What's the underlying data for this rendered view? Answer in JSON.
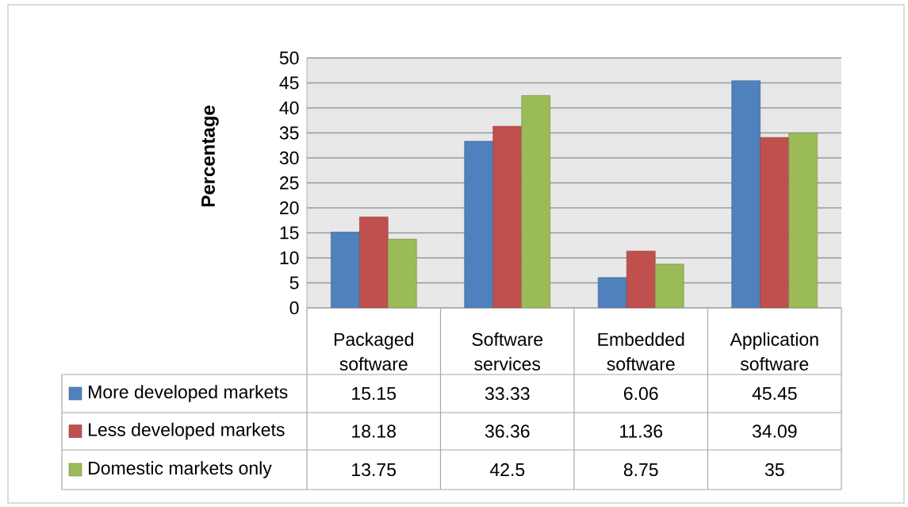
{
  "chart_data": {
    "type": "bar",
    "ylabel": "Percentage",
    "categories": [
      "Packaged software",
      "Software services",
      "Embedded software",
      "Application software"
    ],
    "series": [
      {
        "name": "More developed markets",
        "color": "#4f81bd",
        "values": [
          15.15,
          33.33,
          6.06,
          45.45
        ]
      },
      {
        "name": "Less developed markets",
        "color": "#c0504d",
        "values": [
          18.18,
          36.36,
          11.36,
          34.09
        ]
      },
      {
        "name": "Domestic markets only",
        "color": "#9bbb59",
        "values": [
          13.75,
          42.5,
          8.75,
          35
        ]
      }
    ],
    "ylim": [
      0,
      50
    ],
    "yticks": [
      0,
      5,
      10,
      15,
      20,
      25,
      30,
      35,
      40,
      45,
      50
    ],
    "grid": "y",
    "legend": "bottom left",
    "data_labels": true
  }
}
